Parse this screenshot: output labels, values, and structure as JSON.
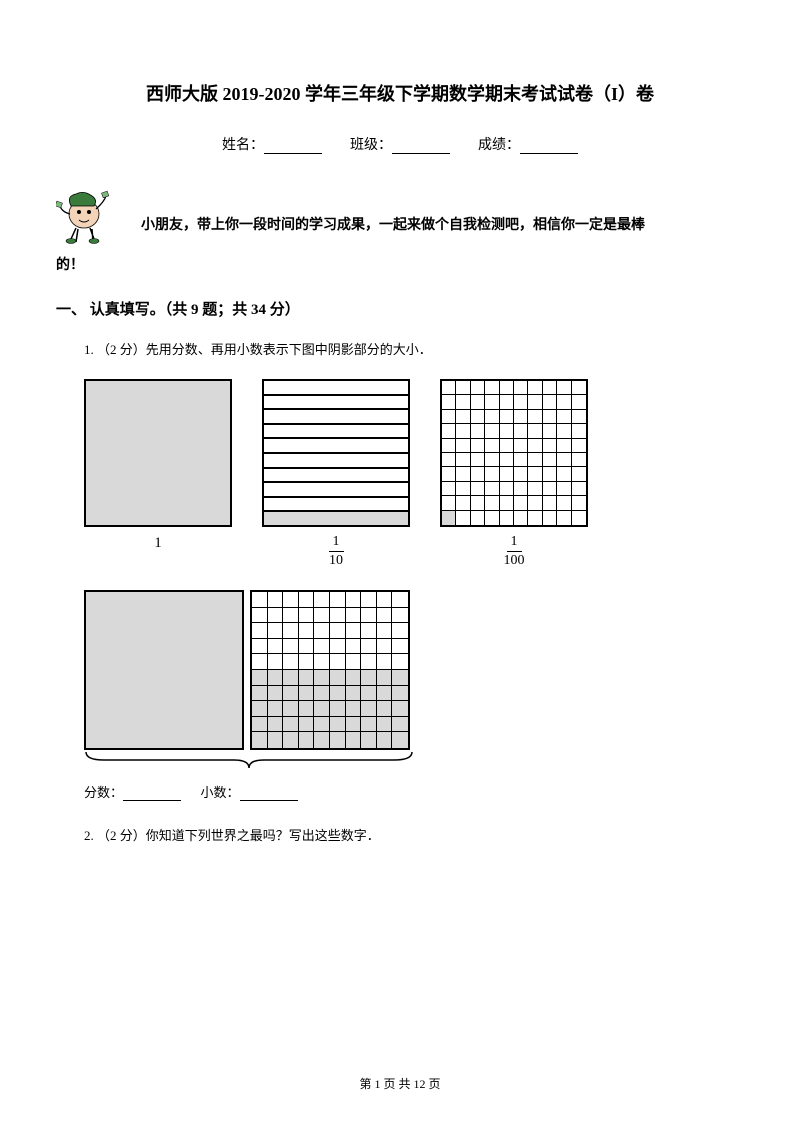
{
  "title": "西师大版 2019-2020 学年三年级下学期数学期末考试试卷（I）卷",
  "info": {
    "name_label": "姓名：",
    "class_label": "班级：",
    "score_label": "成绩："
  },
  "intro": {
    "line1": "小朋友，带上你一段时间的学习成果，一起来做个自我检测吧，相信你一定是最棒",
    "line2": "的！"
  },
  "section1": {
    "heading": "一、 认真填写。（共 9 题；共 34 分）",
    "q1": {
      "text": "1. （2 分）先用分数、再用小数表示下图中阴影部分的大小．",
      "fig_labels": {
        "a": "1",
        "b_num": "1",
        "b_den": "10",
        "c_num": "1",
        "c_den": "100"
      },
      "answer": {
        "fraction_label": "分数：",
        "decimal_label": "小数："
      }
    },
    "q2": {
      "text": "2. （2 分）你知道下列世界之最吗？写出这些数字．"
    }
  },
  "footer": {
    "text": "第 1 页 共 12 页"
  },
  "colors": {
    "text": "#000000",
    "background": "#ffffff",
    "shaded": "#d9d9d9",
    "mascot_green": "#3a7a3a",
    "mascot_skin": "#f4d4b8"
  }
}
